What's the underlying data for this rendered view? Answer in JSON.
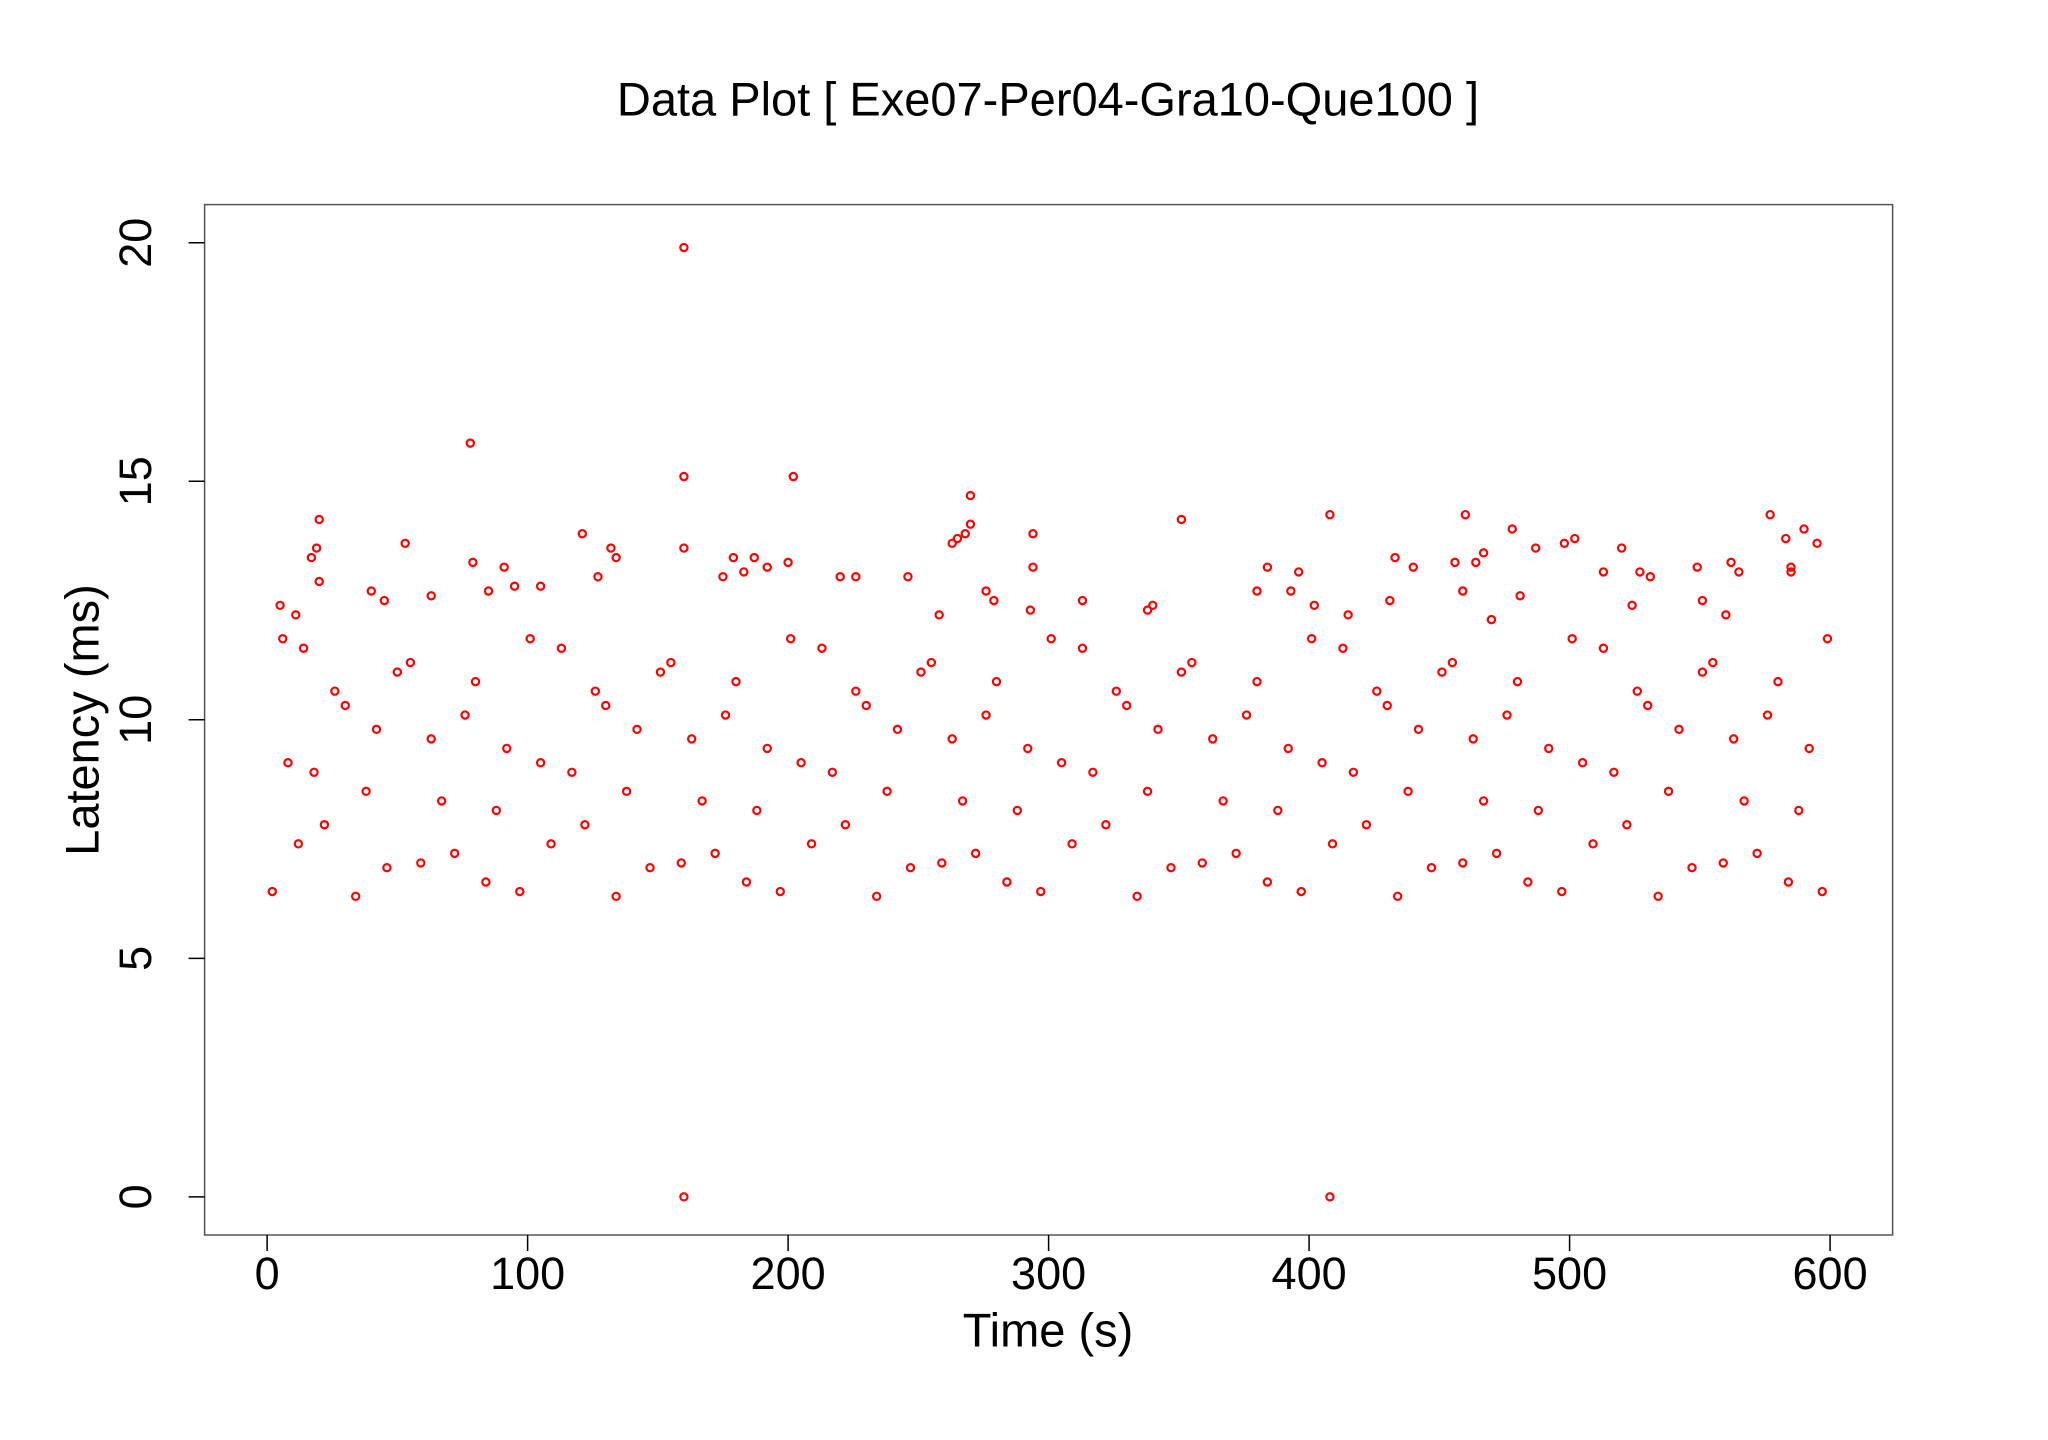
{
  "chart_data": {
    "type": "scatter",
    "title": "Data Plot [ Exe07-Per04-Gra10-Que100 ]",
    "xlabel": "Time (s)",
    "ylabel": "Latency (ms)",
    "color": "#ff0000",
    "xlim": [
      -24,
      624
    ],
    "ylim": [
      -0.8,
      20.8
    ],
    "xticks": [
      0,
      100,
      200,
      300,
      400,
      500,
      600
    ],
    "yticks": [
      0,
      5,
      10,
      15,
      20
    ],
    "x": [
      160,
      408,
      160,
      78,
      160,
      202,
      20,
      270,
      270,
      268,
      265,
      263,
      351,
      408,
      460,
      577,
      590,
      583,
      595,
      502,
      498,
      478,
      487,
      520,
      549,
      565,
      562,
      585,
      585,
      19,
      17,
      53,
      121,
      132,
      134,
      160,
      79,
      91,
      179,
      187,
      200,
      192,
      183,
      175,
      294,
      294,
      384,
      396,
      433,
      440,
      456,
      467,
      464,
      513,
      527,
      531,
      246,
      220,
      226,
      127,
      20,
      276,
      279,
      293,
      313,
      338,
      340,
      380,
      393,
      402,
      431,
      459,
      481,
      524,
      551,
      560,
      258,
      415,
      470,
      105,
      95,
      85,
      45,
      63,
      11,
      5,
      40,
      2,
      8,
      14,
      22,
      30,
      38,
      46,
      55,
      63,
      72,
      80,
      88,
      97,
      105,
      113,
      122,
      130,
      138,
      147,
      155,
      163,
      172,
      180,
      188,
      197,
      205,
      213,
      222,
      230,
      238,
      247,
      255,
      263,
      272,
      280,
      288,
      297,
      305,
      313,
      322,
      330,
      338,
      347,
      355,
      363,
      372,
      380,
      388,
      397,
      405,
      413,
      422,
      430,
      438,
      447,
      455,
      463,
      472,
      480,
      488,
      497,
      505,
      513,
      522,
      530,
      538,
      547,
      555,
      563,
      572,
      580,
      588,
      597,
      6,
      12,
      18,
      26,
      34,
      42,
      50,
      59,
      67,
      76,
      84,
      92,
      101,
      109,
      117,
      126,
      134,
      142,
      151,
      159,
      167,
      176,
      184,
      192,
      201,
      209,
      217,
      226,
      234,
      242,
      251,
      259,
      267,
      276,
      284,
      292,
      301,
      309,
      317,
      326,
      334,
      342,
      351,
      359,
      367,
      376,
      384,
      392,
      401,
      409,
      417,
      426,
      434,
      442,
      451,
      459,
      467,
      476,
      484,
      492,
      501,
      509,
      517,
      526,
      534,
      542,
      551,
      559,
      567,
      576,
      584,
      592,
      599
    ],
    "values": [
      0,
      0,
      19.9,
      15.8,
      15.1,
      15.1,
      14.2,
      14.7,
      14.1,
      13.9,
      13.8,
      13.7,
      14.2,
      14.3,
      14.3,
      14.3,
      14,
      13.8,
      13.7,
      13.8,
      13.7,
      14,
      13.6,
      13.6,
      13.2,
      13.1,
      13.3,
      13.2,
      13.1,
      13.6,
      13.4,
      13.7,
      13.9,
      13.6,
      13.4,
      13.6,
      13.3,
      13.2,
      13.4,
      13.4,
      13.3,
      13.2,
      13.1,
      13.0,
      13.9,
      13.2,
      13.2,
      13.1,
      13.4,
      13.2,
      13.3,
      13.5,
      13.3,
      13.1,
      13.1,
      13,
      13,
      13,
      13,
      13,
      12.9,
      12.7,
      12.5,
      12.3,
      12.5,
      12.3,
      12.4,
      12.7,
      12.7,
      12.4,
      12.5,
      12.7,
      12.6,
      12.4,
      12.5,
      12.2,
      12.2,
      12.2,
      12.1,
      12.8,
      12.8,
      12.7,
      12.5,
      12.6,
      12.2,
      12.4,
      12.7,
      6.4,
      9.1,
      11.5,
      7.8,
      10.3,
      8.5,
      6.9,
      11.2,
      9.6,
      7.2,
      10.8,
      8.1,
      6.4,
      9.1,
      11.5,
      7.8,
      10.3,
      8.5,
      6.9,
      11.2,
      9.6,
      7.2,
      10.8,
      8.1,
      6.4,
      9.1,
      11.5,
      7.8,
      10.3,
      8.5,
      6.9,
      11.2,
      9.6,
      7.2,
      10.8,
      8.1,
      6.4,
      9.1,
      11.5,
      7.8,
      10.3,
      8.5,
      6.9,
      11.2,
      9.6,
      7.2,
      10.8,
      8.1,
      6.4,
      9.1,
      11.5,
      7.8,
      10.3,
      8.5,
      6.9,
      11.2,
      9.6,
      7.2,
      10.8,
      8.1,
      6.4,
      9.1,
      11.5,
      7.8,
      10.3,
      8.5,
      6.9,
      11.2,
      9.6,
      7.2,
      10.8,
      8.1,
      6.4,
      11.7,
      7.4,
      8.9,
      10.6,
      6.3,
      9.8,
      11.0,
      7.0,
      8.3,
      10.1,
      6.6,
      9.4,
      11.7,
      7.4,
      8.9,
      10.6,
      6.3,
      9.8,
      11.0,
      7.0,
      8.3,
      10.1,
      6.6,
      9.4,
      11.7,
      7.4,
      8.9,
      10.6,
      6.3,
      9.8,
      11.0,
      7.0,
      8.3,
      10.1,
      6.6,
      9.4,
      11.7,
      7.4,
      8.9,
      10.6,
      6.3,
      9.8,
      11.0,
      7.0,
      8.3,
      10.1,
      6.6,
      9.4,
      11.7,
      7.4,
      8.9,
      10.6,
      6.3,
      9.8,
      11.0,
      7.0,
      8.3,
      10.1,
      6.6,
      9.4,
      11.7,
      7.4,
      8.9,
      10.6,
      6.3,
      9.8,
      11.0,
      7.0,
      8.3,
      10.1,
      6.6,
      9.4,
      11.7
    ]
  }
}
